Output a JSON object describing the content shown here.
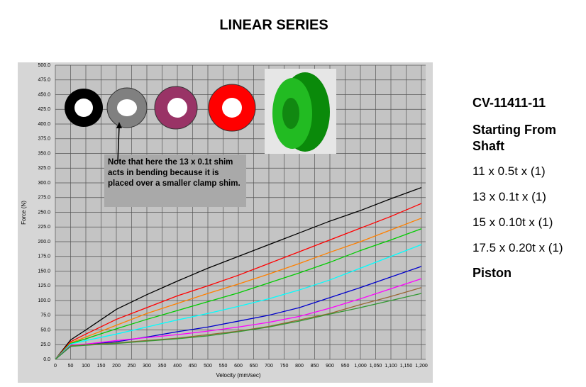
{
  "chart_data": {
    "type": "line",
    "title": "LINEAR SERIES",
    "x_label": "Velocity (mm/sec)",
    "y_label": "Force (N)",
    "annotation": "Note that here the 13 x 0.1t shim acts in bending because it is placed over a smaller clamp shim.",
    "grid": true,
    "xlim": [
      0,
      1200
    ],
    "ylim": [
      0,
      500
    ],
    "xticks": [
      0,
      50,
      100,
      150,
      200,
      250,
      300,
      350,
      400,
      450,
      500,
      550,
      600,
      650,
      700,
      750,
      800,
      850,
      900,
      950,
      {
        "value": 1000,
        "label": "1,000"
      },
      {
        "value": 1050,
        "label": "1,050"
      },
      {
        "value": 1100,
        "label": "1,100"
      },
      {
        "value": 1150,
        "label": "1,150"
      },
      {
        "value": 1200,
        "label": "1,200"
      }
    ],
    "yticks": [
      {
        "value": 0,
        "label": "0.0"
      },
      {
        "value": 25,
        "label": "25.0"
      },
      {
        "value": 50,
        "label": "50.0"
      },
      {
        "value": 75,
        "label": "75.0"
      },
      {
        "value": 100,
        "label": "100.0"
      },
      {
        "value": 125,
        "label": "125.0"
      },
      {
        "value": 150,
        "label": "150.0"
      },
      {
        "value": 175,
        "label": "175.0"
      },
      {
        "value": 200,
        "label": "200.0"
      },
      {
        "value": 225,
        "label": "225.0"
      },
      {
        "value": 250,
        "label": "250.0"
      },
      {
        "value": 275,
        "label": "275.0"
      },
      {
        "value": 300,
        "label": "300.0"
      },
      {
        "value": 325,
        "label": "325.0"
      },
      {
        "value": 350,
        "label": "350.0"
      },
      {
        "value": 375,
        "label": "375.0"
      },
      {
        "value": 400,
        "label": "400.0"
      },
      {
        "value": 425,
        "label": "425.0"
      },
      {
        "value": 450,
        "label": "450.0"
      },
      {
        "value": 475,
        "label": "475.0"
      },
      {
        "value": 500,
        "label": "500.0"
      }
    ],
    "x": [
      0,
      50,
      100,
      200,
      300,
      400,
      500,
      600,
      700,
      800,
      900,
      1000,
      1100,
      1200
    ],
    "series": [
      {
        "color": "#000000",
        "values": [
          0,
          33,
          50,
          85,
          110,
          133,
          155,
          175,
          195,
          215,
          235,
          253,
          273,
          292
        ]
      },
      {
        "color": "#ff0000",
        "values": [
          0,
          30,
          43,
          68,
          88,
          108,
          125,
          143,
          163,
          183,
          203,
          223,
          243,
          265
        ]
      },
      {
        "color": "#ff8000",
        "values": [
          0,
          28,
          38,
          58,
          78,
          95,
          112,
          128,
          145,
          163,
          182,
          200,
          220,
          240
        ]
      },
      {
        "color": "#00cc00",
        "values": [
          0,
          27,
          35,
          52,
          68,
          83,
          98,
          113,
          130,
          147,
          165,
          185,
          203,
          222
        ]
      },
      {
        "color": "#00ffff",
        "values": [
          0,
          26,
          32,
          43,
          55,
          67,
          78,
          90,
          103,
          118,
          135,
          155,
          175,
          195
        ]
      },
      {
        "color": "#0000cc",
        "values": [
          0,
          22,
          25,
          30,
          38,
          47,
          55,
          65,
          75,
          88,
          105,
          122,
          140,
          158
        ]
      },
      {
        "color": "#ff00ff",
        "values": [
          0,
          24,
          26,
          32,
          37,
          42,
          48,
          55,
          63,
          73,
          87,
          103,
          120,
          137
        ]
      },
      {
        "color": "#996633",
        "values": [
          0,
          23,
          25,
          28,
          32,
          36,
          42,
          48,
          56,
          67,
          78,
          93,
          107,
          122
        ]
      },
      {
        "color": "#339933",
        "values": [
          0,
          22,
          24,
          27,
          31,
          35,
          40,
          47,
          55,
          65,
          77,
          88,
          100,
          112
        ]
      }
    ]
  },
  "side_panel": {
    "part_number": "CV-11411-11",
    "heading": "Starting From Shaft",
    "shims": [
      "11 x 0.5t x (1)",
      "13 x 0.1t x (1)",
      "15 x 0.10t x (1)",
      "17.5 x 0.20t x (1)"
    ],
    "footer": "Piston"
  }
}
